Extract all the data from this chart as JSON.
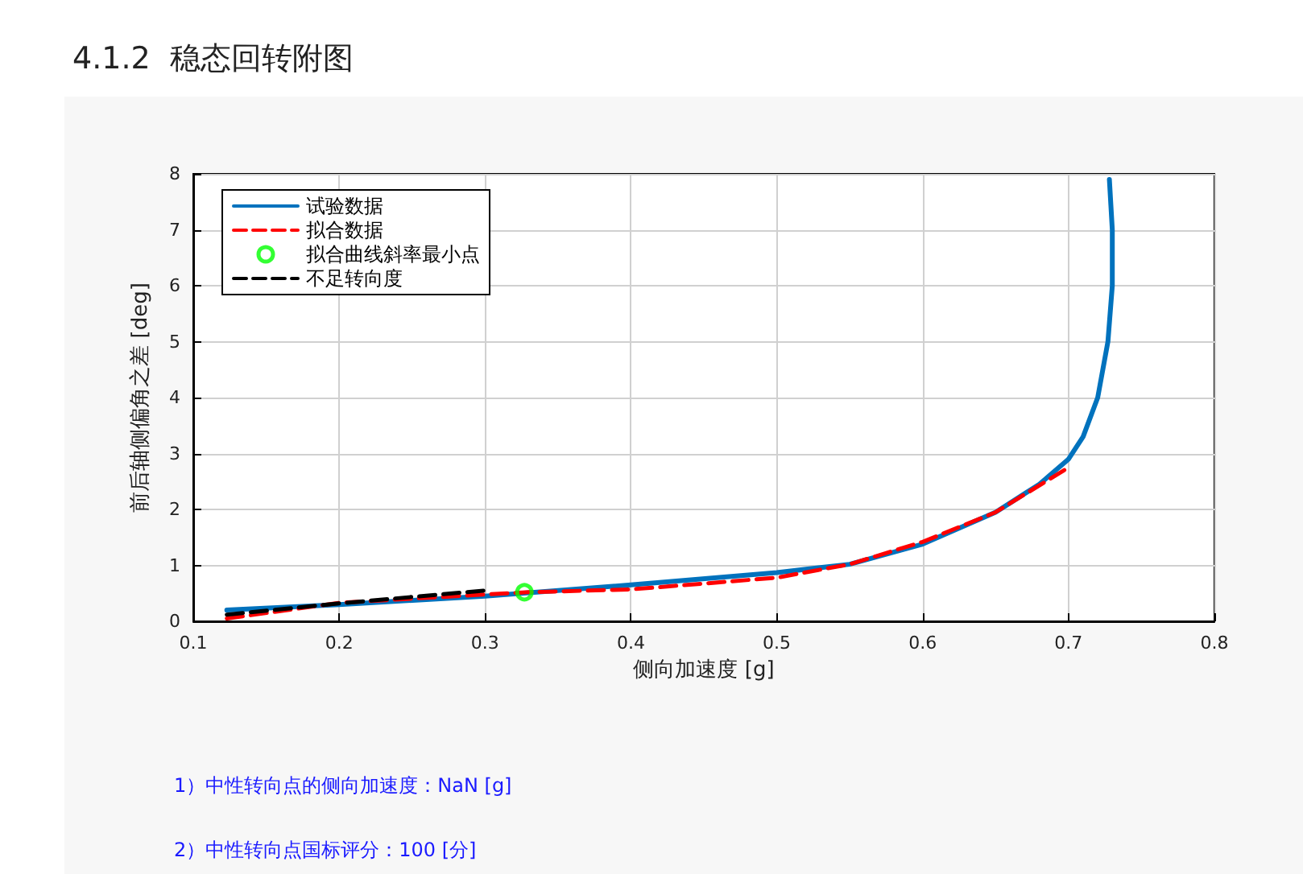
{
  "chart_data": {
    "type": "line",
    "title": "4.1.2  稳态回转附图",
    "xlabel": "侧向加速度 [g]",
    "ylabel": "前后轴侧偏角之差 [deg]",
    "xlim": [
      0.1,
      0.8
    ],
    "xticks": [
      0.1,
      0.2,
      0.3,
      0.4,
      0.5,
      0.6,
      0.7,
      0.8
    ],
    "ylim": [
      0,
      8
    ],
    "yticks": [
      0,
      1,
      2,
      3,
      4,
      5,
      6,
      7,
      8
    ],
    "grid": true,
    "legend": "top left",
    "annotations": [
      "1）中性转向点的侧向加速度：NaN [g]",
      "2）中性转向点国标评分：100 [分]"
    ],
    "series": [
      {
        "name": "试验数据",
        "color": "#0072bd",
        "line_style": "solid",
        "marker": "none",
        "x": [
          0.123,
          0.2,
          0.3,
          0.4,
          0.5,
          0.55,
          0.6,
          0.65,
          0.68,
          0.7,
          0.71,
          0.72,
          0.727,
          0.73,
          0.73,
          0.728
        ],
        "values": [
          0.2,
          0.3,
          0.45,
          0.65,
          0.87,
          1.02,
          1.38,
          1.95,
          2.45,
          2.9,
          3.3,
          4.0,
          5.0,
          6.0,
          7.0,
          7.9
        ]
      },
      {
        "name": "拟合数据",
        "color": "#ff0000",
        "line_style": "dashed",
        "marker": "none",
        "x": [
          0.123,
          0.2,
          0.3,
          0.33,
          0.4,
          0.5,
          0.55,
          0.6,
          0.65,
          0.7
        ],
        "values": [
          0.05,
          0.33,
          0.48,
          0.52,
          0.57,
          0.78,
          1.02,
          1.42,
          1.95,
          2.75
        ]
      },
      {
        "name": "拟合曲线斜率最小点",
        "type": "scatter",
        "color": "#00ff00",
        "marker": "circle",
        "x": [
          0.327
        ],
        "values": [
          0.52
        ]
      },
      {
        "name": "不足转向度",
        "color": "#000000",
        "line_style": "dashed",
        "marker": "none",
        "x": [
          0.123,
          0.2,
          0.3
        ],
        "values": [
          0.12,
          0.32,
          0.55
        ]
      }
    ]
  }
}
